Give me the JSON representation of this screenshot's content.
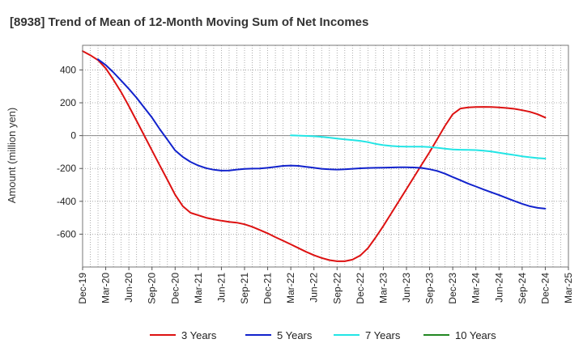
{
  "chart_data": {
    "type": "line",
    "title": "[8938]  Trend of Mean of 12-Month Moving Sum of Net Incomes",
    "xlabel": "",
    "ylabel": "Amount (million yen)",
    "ylim": [
      -800,
      550
    ],
    "yticks": [
      400,
      200,
      0,
      -200,
      -400,
      -600
    ],
    "xlim": [
      "2019-12",
      "2025-03"
    ],
    "xtick_labels": [
      "Dec-19",
      "Mar-20",
      "Jun-20",
      "Sep-20",
      "Dec-20",
      "Mar-21",
      "Jun-21",
      "Sep-21",
      "Dec-21",
      "Mar-22",
      "Jun-22",
      "Sep-22",
      "Dec-22",
      "Mar-23",
      "Jun-23",
      "Sep-23",
      "Dec-23",
      "Mar-24",
      "Jun-24",
      "Sep-24",
      "Dec-24",
      "Mar-25"
    ],
    "grid": true,
    "legend_position": "bottom",
    "series": [
      {
        "name": "3 Years",
        "color": "#dd1111",
        "points": [
          [
            "2019-12",
            515
          ],
          [
            "2020-01",
            490
          ],
          [
            "2020-02",
            460
          ],
          [
            "2020-03",
            410
          ],
          [
            "2020-04",
            340
          ],
          [
            "2020-05",
            265
          ],
          [
            "2020-06",
            180
          ],
          [
            "2020-07",
            90
          ],
          [
            "2020-08",
            0
          ],
          [
            "2020-09",
            -90
          ],
          [
            "2020-10",
            -180
          ],
          [
            "2020-11",
            -270
          ],
          [
            "2020-12",
            -360
          ],
          [
            "2021-01",
            -430
          ],
          [
            "2021-02",
            -470
          ],
          [
            "2021-03",
            -485
          ],
          [
            "2021-04",
            -500
          ],
          [
            "2021-05",
            -510
          ],
          [
            "2021-06",
            -518
          ],
          [
            "2021-07",
            -525
          ],
          [
            "2021-08",
            -530
          ],
          [
            "2021-09",
            -540
          ],
          [
            "2021-10",
            -555
          ],
          [
            "2021-11",
            -575
          ],
          [
            "2021-12",
            -595
          ],
          [
            "2022-01",
            -618
          ],
          [
            "2022-02",
            -640
          ],
          [
            "2022-03",
            -662
          ],
          [
            "2022-04",
            -685
          ],
          [
            "2022-05",
            -708
          ],
          [
            "2022-06",
            -728
          ],
          [
            "2022-07",
            -745
          ],
          [
            "2022-08",
            -758
          ],
          [
            "2022-09",
            -765
          ],
          [
            "2022-10",
            -765
          ],
          [
            "2022-11",
            -755
          ],
          [
            "2022-12",
            -730
          ],
          [
            "2023-01",
            -685
          ],
          [
            "2023-02",
            -620
          ],
          [
            "2023-03",
            -550
          ],
          [
            "2023-04",
            -475
          ],
          [
            "2023-05",
            -400
          ],
          [
            "2023-06",
            -325
          ],
          [
            "2023-07",
            -250
          ],
          [
            "2023-08",
            -175
          ],
          [
            "2023-09",
            -100
          ],
          [
            "2023-10",
            -20
          ],
          [
            "2023-11",
            60
          ],
          [
            "2023-12",
            130
          ],
          [
            "2024-01",
            165
          ],
          [
            "2024-02",
            172
          ],
          [
            "2024-03",
            174
          ],
          [
            "2024-04",
            175
          ],
          [
            "2024-05",
            174
          ],
          [
            "2024-06",
            172
          ],
          [
            "2024-07",
            168
          ],
          [
            "2024-08",
            163
          ],
          [
            "2024-09",
            155
          ],
          [
            "2024-10",
            145
          ],
          [
            "2024-11",
            130
          ],
          [
            "2024-12",
            110
          ]
        ]
      },
      {
        "name": "5 Years",
        "color": "#1122cc",
        "points": [
          [
            "2020-02",
            465
          ],
          [
            "2020-03",
            430
          ],
          [
            "2020-04",
            385
          ],
          [
            "2020-05",
            335
          ],
          [
            "2020-06",
            285
          ],
          [
            "2020-07",
            230
          ],
          [
            "2020-08",
            170
          ],
          [
            "2020-09",
            110
          ],
          [
            "2020-10",
            40
          ],
          [
            "2020-11",
            -25
          ],
          [
            "2020-12",
            -90
          ],
          [
            "2021-01",
            -130
          ],
          [
            "2021-02",
            -160
          ],
          [
            "2021-03",
            -182
          ],
          [
            "2021-04",
            -198
          ],
          [
            "2021-05",
            -208
          ],
          [
            "2021-06",
            -213
          ],
          [
            "2021-07",
            -212
          ],
          [
            "2021-08",
            -207
          ],
          [
            "2021-09",
            -203
          ],
          [
            "2021-10",
            -201
          ],
          [
            "2021-11",
            -200
          ],
          [
            "2021-12",
            -196
          ],
          [
            "2022-01",
            -190
          ],
          [
            "2022-02",
            -184
          ],
          [
            "2022-03",
            -182
          ],
          [
            "2022-04",
            -184
          ],
          [
            "2022-05",
            -190
          ],
          [
            "2022-06",
            -196
          ],
          [
            "2022-07",
            -202
          ],
          [
            "2022-08",
            -205
          ],
          [
            "2022-09",
            -207
          ],
          [
            "2022-10",
            -205
          ],
          [
            "2022-11",
            -202
          ],
          [
            "2022-12",
            -199
          ],
          [
            "2023-01",
            -197
          ],
          [
            "2023-02",
            -196
          ],
          [
            "2023-03",
            -195
          ],
          [
            "2023-04",
            -194
          ],
          [
            "2023-05",
            -193
          ],
          [
            "2023-06",
            -193
          ],
          [
            "2023-07",
            -194
          ],
          [
            "2023-08",
            -197
          ],
          [
            "2023-09",
            -205
          ],
          [
            "2023-10",
            -215
          ],
          [
            "2023-11",
            -232
          ],
          [
            "2023-12",
            -252
          ],
          [
            "2024-01",
            -272
          ],
          [
            "2024-02",
            -292
          ],
          [
            "2024-03",
            -310
          ],
          [
            "2024-04",
            -328
          ],
          [
            "2024-05",
            -345
          ],
          [
            "2024-06",
            -362
          ],
          [
            "2024-07",
            -380
          ],
          [
            "2024-08",
            -398
          ],
          [
            "2024-09",
            -415
          ],
          [
            "2024-10",
            -430
          ],
          [
            "2024-11",
            -440
          ],
          [
            "2024-12",
            -445
          ]
        ]
      },
      {
        "name": "7 Years",
        "color": "#22e5e5",
        "points": [
          [
            "2022-03",
            2
          ],
          [
            "2022-04",
            0
          ],
          [
            "2022-05",
            -2
          ],
          [
            "2022-06",
            -4
          ],
          [
            "2022-07",
            -7
          ],
          [
            "2022-08",
            -12
          ],
          [
            "2022-09",
            -18
          ],
          [
            "2022-10",
            -23
          ],
          [
            "2022-11",
            -27
          ],
          [
            "2022-12",
            -32
          ],
          [
            "2023-01",
            -40
          ],
          [
            "2023-02",
            -50
          ],
          [
            "2023-03",
            -58
          ],
          [
            "2023-04",
            -63
          ],
          [
            "2023-05",
            -66
          ],
          [
            "2023-06",
            -67
          ],
          [
            "2023-07",
            -67
          ],
          [
            "2023-08",
            -67
          ],
          [
            "2023-09",
            -70
          ],
          [
            "2023-10",
            -74
          ],
          [
            "2023-11",
            -79
          ],
          [
            "2023-12",
            -84
          ],
          [
            "2024-01",
            -86
          ],
          [
            "2024-02",
            -87
          ],
          [
            "2024-03",
            -88
          ],
          [
            "2024-04",
            -92
          ],
          [
            "2024-05",
            -97
          ],
          [
            "2024-06",
            -104
          ],
          [
            "2024-07",
            -111
          ],
          [
            "2024-08",
            -118
          ],
          [
            "2024-09",
            -126
          ],
          [
            "2024-10",
            -132
          ],
          [
            "2024-11",
            -137
          ],
          [
            "2024-12",
            -140
          ]
        ]
      },
      {
        "name": "10 Years",
        "color": "#228822",
        "points": []
      }
    ]
  }
}
